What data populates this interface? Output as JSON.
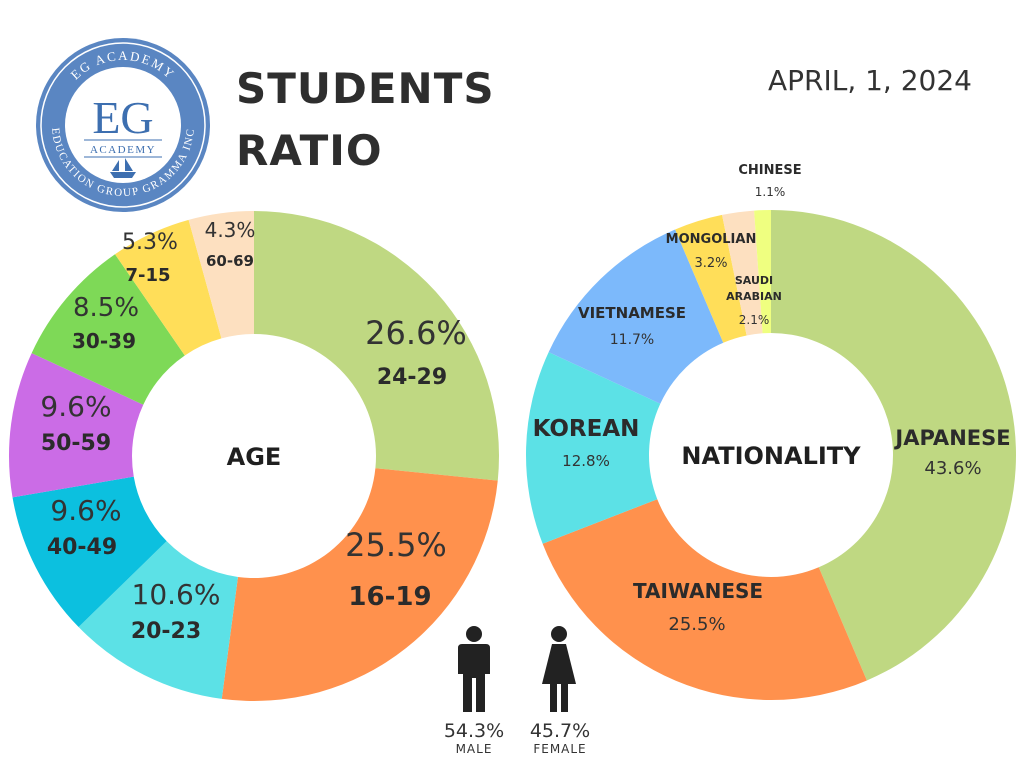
{
  "logo": {
    "top_text": "EG ACADEMY",
    "monogram": "EG",
    "inner_text": "ACADEMY",
    "bottom_text": "EDUCATION GROUP GRAMMA INC"
  },
  "header": {
    "title_line1": "STUDENTS",
    "title_line2": "RATIO",
    "date": "APRIL, 1, 2024"
  },
  "chart_data": [
    {
      "type": "pie",
      "title": "AGE",
      "donut": true,
      "slices": [
        {
          "label": "24-29",
          "value": 26.6,
          "pct_text": "26.6%",
          "color": "#bfd882"
        },
        {
          "label": "16-19",
          "value": 25.5,
          "pct_text": "25.5%",
          "color": "#ff914d"
        },
        {
          "label": "20-23",
          "value": 10.6,
          "pct_text": "10.6%",
          "color": "#5ce1e6"
        },
        {
          "label": "40-49",
          "value": 9.6,
          "pct_text": "9.6%",
          "color": "#0cc0df"
        },
        {
          "label": "50-59",
          "value": 9.6,
          "pct_text": "9.6%",
          "color": "#cb6ce6"
        },
        {
          "label": "30-39",
          "value": 8.5,
          "pct_text": "8.5%",
          "color": "#7ed957"
        },
        {
          "label": "7-15",
          "value": 5.3,
          "pct_text": "5.3%",
          "color": "#ffde59"
        },
        {
          "label": "60-69",
          "value": 4.3,
          "pct_text": "4.3%",
          "color": "#fde0c0"
        }
      ]
    },
    {
      "type": "pie",
      "title": "NATIONALITY",
      "donut": true,
      "slices": [
        {
          "label": "JAPANESE",
          "value": 43.6,
          "pct_text": "43.6%",
          "color": "#bfd882"
        },
        {
          "label": "TAIWANESE",
          "value": 25.5,
          "pct_text": "25.5%",
          "color": "#ff914d"
        },
        {
          "label": "KOREAN",
          "value": 12.8,
          "pct_text": "12.8%",
          "color": "#5ce1e6"
        },
        {
          "label": "VIETNAMESE",
          "value": 11.7,
          "pct_text": "11.7%",
          "color": "#7cb9fb"
        },
        {
          "label": "MONGOLIAN",
          "value": 3.2,
          "pct_text": "3.2%",
          "color": "#ffde59"
        },
        {
          "label": "SAUDI ARABIAN",
          "label_lines": [
            "SAUDI",
            "ARABIAN"
          ],
          "value": 2.1,
          "pct_text": "2.1%",
          "color": "#fde0c0"
        },
        {
          "label": "CHINESE",
          "value": 1.1,
          "pct_text": "1.1%",
          "color": "#efff80"
        }
      ]
    }
  ],
  "gender": {
    "male": {
      "pct": "54.3%",
      "label": "MALE",
      "color": "#222222"
    },
    "female": {
      "pct": "45.7%",
      "label": "FEMALE",
      "color": "#222222"
    }
  }
}
